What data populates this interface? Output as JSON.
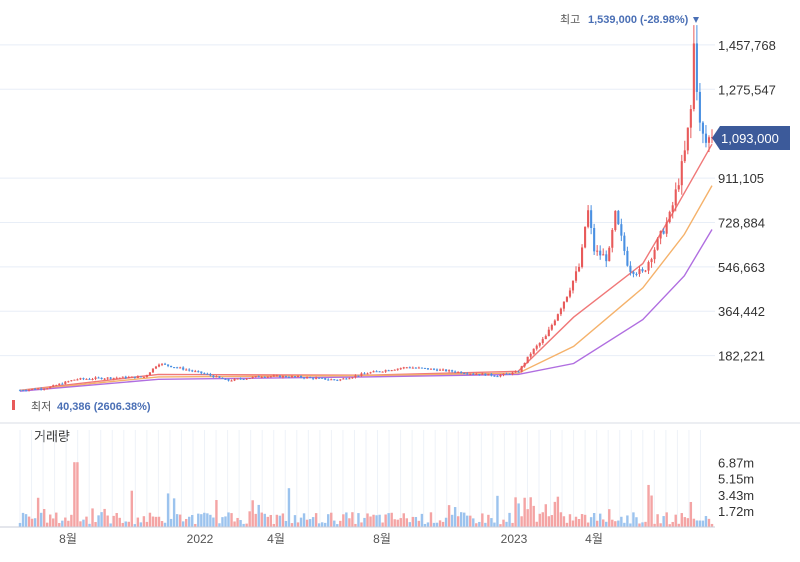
{
  "chart_data": {
    "type": "candlestick",
    "price_axis": {
      "ticks": [
        182221,
        364442,
        546663,
        728884,
        911105,
        1275547,
        1457768
      ],
      "tick_labels": [
        "182,221",
        "364,442",
        "546,663",
        "728,884",
        "911,105",
        "1,275,547",
        "1,457,768"
      ],
      "range": [
        0,
        1560000
      ]
    },
    "current_price": {
      "value": 1093000,
      "label": "1,093,000"
    },
    "high": {
      "label": "최고",
      "value_text": "1,539,000 (-28.98%)",
      "value": 1539000
    },
    "low": {
      "label": "최저",
      "value_text": "40,386 (2606.38%)",
      "value": 40386
    },
    "x_axis": {
      "tick_labels": [
        "8월",
        "2022",
        "4월",
        "8월",
        "2023",
        "4월"
      ]
    },
    "price_path": [
      [
        0,
        40386
      ],
      [
        0.04,
        50000
      ],
      [
        0.08,
        85000
      ],
      [
        0.12,
        90000
      ],
      [
        0.18,
        95000
      ],
      [
        0.2,
        150000
      ],
      [
        0.24,
        125000
      ],
      [
        0.27,
        105000
      ],
      [
        0.3,
        80000
      ],
      [
        0.35,
        98000
      ],
      [
        0.4,
        95000
      ],
      [
        0.46,
        82000
      ],
      [
        0.5,
        110000
      ],
      [
        0.56,
        135000
      ],
      [
        0.6,
        125000
      ],
      [
        0.65,
        110000
      ],
      [
        0.69,
        100000
      ],
      [
        0.72,
        115000
      ],
      [
        0.74,
        200000
      ],
      [
        0.76,
        260000
      ],
      [
        0.79,
        430000
      ],
      [
        0.81,
        560000
      ],
      [
        0.82,
        790000
      ],
      [
        0.83,
        610000
      ],
      [
        0.85,
        580000
      ],
      [
        0.86,
        760000
      ],
      [
        0.88,
        540000
      ],
      [
        0.9,
        520000
      ],
      [
        0.92,
        640000
      ],
      [
        0.94,
        760000
      ],
      [
        0.96,
        1000000
      ],
      [
        0.97,
        1200000
      ],
      [
        0.975,
        1539000
      ],
      [
        0.98,
        1150000
      ],
      [
        0.99,
        1050000
      ],
      [
        1.0,
        1093000
      ]
    ],
    "moving_averages": [
      {
        "color": "#f07878",
        "path": [
          [
            0,
            40000
          ],
          [
            0.2,
            105000
          ],
          [
            0.5,
            102000
          ],
          [
            0.72,
            118000
          ],
          [
            0.8,
            340000
          ],
          [
            0.9,
            560000
          ],
          [
            0.95,
            800000
          ],
          [
            1.0,
            1050000
          ]
        ]
      },
      {
        "color": "#f5b26b",
        "path": [
          [
            0,
            38000
          ],
          [
            0.2,
            95000
          ],
          [
            0.5,
            100000
          ],
          [
            0.72,
            110000
          ],
          [
            0.8,
            220000
          ],
          [
            0.9,
            460000
          ],
          [
            0.96,
            680000
          ],
          [
            1.0,
            880000
          ]
        ]
      },
      {
        "color": "#b06ee0",
        "path": [
          [
            0,
            36000
          ],
          [
            0.2,
            85000
          ],
          [
            0.5,
            95000
          ],
          [
            0.72,
            105000
          ],
          [
            0.8,
            150000
          ],
          [
            0.9,
            330000
          ],
          [
            0.96,
            510000
          ],
          [
            1.0,
            700000
          ]
        ]
      }
    ],
    "volume": {
      "title": "거래량",
      "ticks": [
        1.72,
        3.43,
        5.15,
        6.87
      ],
      "tick_labels": [
        "1.72m",
        "3.43m",
        "5.15m",
        "6.87m"
      ],
      "range": [
        0,
        8.2
      ]
    }
  },
  "colors": {
    "up": "#e85a5a",
    "down": "#4a90e2",
    "volume_up": "#f4a4a4",
    "volume_down": "#9cc3ee",
    "grid": "#e8eef7",
    "current_tag": "#3c5a9a",
    "high_line": "#4a90e2"
  }
}
